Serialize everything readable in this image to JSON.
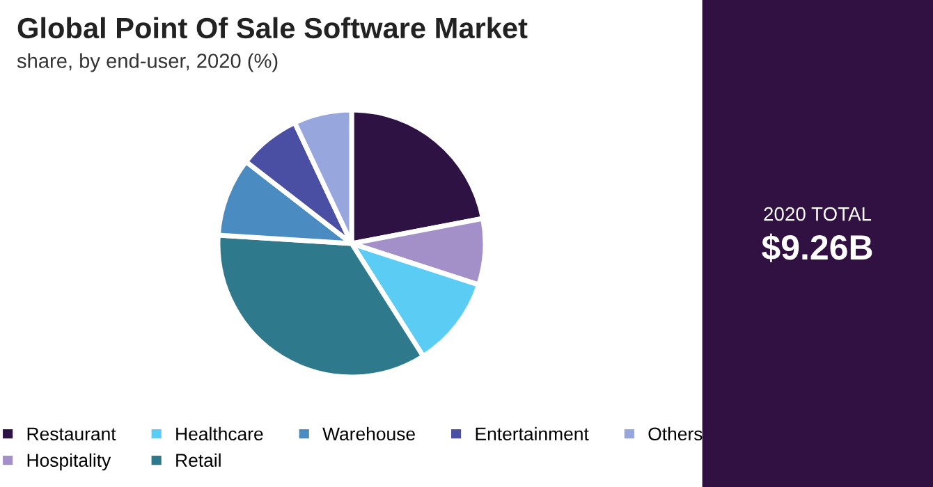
{
  "chart_data": {
    "type": "pie",
    "title": "Global Point Of Sale Software Market",
    "subtitle": "share, by end-user, 2020 (%)",
    "categories": [
      "Restaurant",
      "Hospitality",
      "Healthcare",
      "Retail",
      "Warehouse",
      "Entertainment",
      "Others"
    ],
    "values": [
      22,
      8,
      11,
      35,
      9.5,
      7.5,
      7
    ],
    "colors": [
      "#2e1244",
      "#a390c8",
      "#5bcdf5",
      "#2e7a8c",
      "#4a8bc2",
      "#4a4fa3",
      "#97a6dc"
    ],
    "annotations": [
      "2020 TOTAL",
      "$9.26B"
    ],
    "legend": "bottom"
  }
}
